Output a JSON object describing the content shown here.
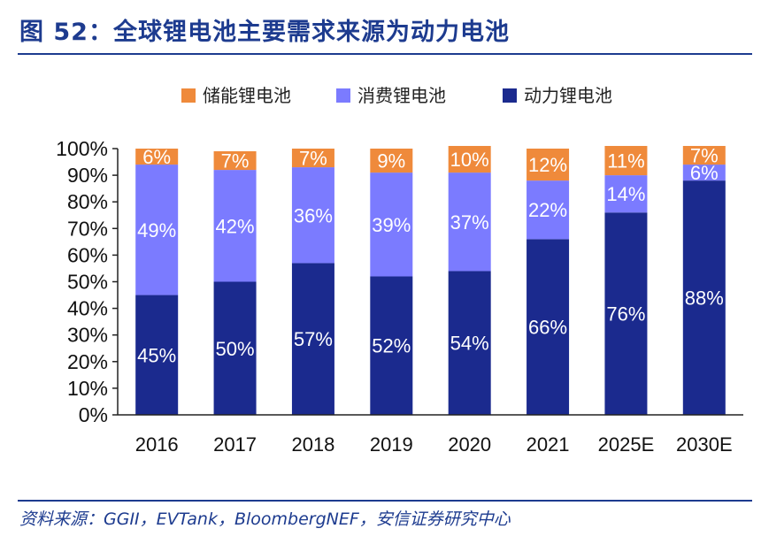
{
  "header": {
    "title": "图 52：全球锂电池主要需求来源为动力电池"
  },
  "footer": {
    "source": "资料来源：GGII，EVTank，BloombergNEF，安信证券研究中心"
  },
  "colors": {
    "brand": "#1d3b8f",
    "storage": "#ef8a3b",
    "consumer": "#7b7bff",
    "power": "#1b2a8e"
  },
  "chart_data": {
    "type": "bar",
    "stacked": true,
    "categories": [
      "2016",
      "2017",
      "2018",
      "2019",
      "2020",
      "2021",
      "2025E",
      "2030E"
    ],
    "series": [
      {
        "name": "动力锂电池",
        "values": [
          45,
          50,
          57,
          52,
          54,
          66,
          76,
          88
        ],
        "labels": [
          "45%",
          "50%",
          "57%",
          "52%",
          "54%",
          "66%",
          "76%",
          "88%"
        ]
      },
      {
        "name": "消费锂电池",
        "values": [
          49,
          42,
          36,
          39,
          37,
          22,
          14,
          6
        ],
        "labels": [
          "49%",
          "42%",
          "36%",
          "39%",
          "37%",
          "22%",
          "14%",
          "6%"
        ]
      },
      {
        "name": "储能锂电池",
        "values": [
          6,
          7,
          7,
          9,
          10,
          12,
          11,
          7
        ],
        "labels": [
          "6%",
          "7%",
          "7%",
          "9%",
          "10%",
          "12%",
          "11%",
          "7%"
        ]
      }
    ],
    "legend": [
      "储能锂电池",
      "消费锂电池",
      "动力锂电池"
    ],
    "legend_position": "top",
    "yticks": [
      "0%",
      "10%",
      "20%",
      "30%",
      "40%",
      "50%",
      "60%",
      "70%",
      "80%",
      "90%",
      "100%"
    ],
    "ylim": [
      0,
      100
    ],
    "grid": false
  }
}
